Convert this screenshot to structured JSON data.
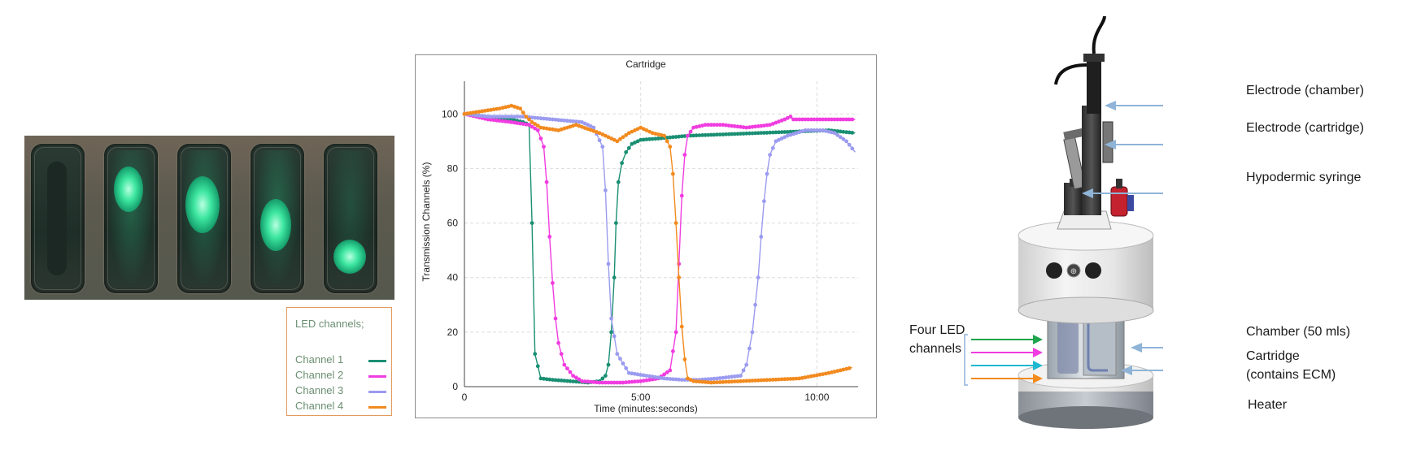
{
  "legend": {
    "title": "LED channels;",
    "channels": [
      {
        "name": "Channel 1",
        "color": "#1a8f73"
      },
      {
        "name": "Channel 2",
        "color": "#f03ce0"
      },
      {
        "name": "Channel 3",
        "color": "#9b9bf0"
      },
      {
        "name": "Channel 4",
        "color": "#f28a1e"
      }
    ]
  },
  "chart_data": {
    "type": "line",
    "title": "Cartridge",
    "xlabel": "Time (minutes:seconds)",
    "ylabel": "Transmission Channels (%)",
    "xlim": [
      0,
      670
    ],
    "ylim": [
      0,
      112
    ],
    "xticks": [
      {
        "value": 0,
        "label": "0"
      },
      {
        "value": 300,
        "label": "5:00"
      },
      {
        "value": 600,
        "label": "10:00"
      }
    ],
    "yticks": [
      0,
      20,
      40,
      60,
      80,
      100
    ],
    "grid": true,
    "series": [
      {
        "name": "Channel 1",
        "color": "#1a8f73",
        "x": [
          0,
          40,
          80,
          100,
          110,
          115,
          120,
          130,
          150,
          180,
          210,
          230,
          240,
          245,
          250,
          255,
          258,
          262,
          268,
          275,
          285,
          300,
          330,
          380,
          440,
          500,
          560,
          620,
          665
        ],
        "y": [
          100,
          99,
          98,
          97,
          96,
          60,
          12,
          3,
          2.5,
          2,
          1.5,
          2,
          4,
          8,
          20,
          40,
          60,
          75,
          82,
          86,
          89,
          90.5,
          91,
          92,
          92.5,
          93,
          93.5,
          94,
          93
        ]
      },
      {
        "name": "Channel 2",
        "color": "#f03ce0",
        "x": [
          0,
          40,
          80,
          110,
          125,
          135,
          140,
          145,
          150,
          155,
          160,
          170,
          185,
          200,
          230,
          270,
          300,
          330,
          350,
          360,
          365,
          370,
          375,
          380,
          390,
          410,
          440,
          480,
          520,
          545,
          555,
          560,
          580,
          620,
          665
        ],
        "y": [
          100,
          98,
          97,
          96,
          94,
          88,
          75,
          55,
          38,
          25,
          16,
          8,
          4,
          2,
          1.5,
          1.5,
          2,
          3,
          6,
          20,
          45,
          70,
          85,
          92,
          95,
          96,
          96,
          95,
          96,
          98,
          99,
          98,
          98,
          98,
          98
        ]
      },
      {
        "name": "Channel 3",
        "color": "#9b9bf0",
        "x": [
          0,
          40,
          100,
          150,
          200,
          220,
          235,
          240,
          245,
          250,
          260,
          280,
          310,
          340,
          370,
          400,
          430,
          470,
          480,
          490,
          500,
          505,
          510,
          515,
          520,
          530,
          550,
          580,
          610,
          630,
          650,
          665
        ],
        "y": [
          100,
          99,
          99,
          98,
          97,
          95,
          88,
          72,
          45,
          25,
          12,
          5,
          4,
          3,
          2.5,
          2.5,
          3,
          4,
          8,
          20,
          40,
          55,
          68,
          78,
          85,
          90,
          92,
          94,
          94,
          93,
          90,
          86
        ]
      },
      {
        "name": "Channel 4",
        "color": "#f28a1e",
        "x": [
          0,
          30,
          60,
          80,
          95,
          105,
          115,
          130,
          160,
          190,
          230,
          260,
          280,
          300,
          320,
          340,
          350,
          355,
          360,
          365,
          370,
          375,
          380,
          390,
          420,
          470,
          520,
          570,
          620,
          660
        ],
        "y": [
          100,
          101,
          102,
          103,
          102,
          99,
          97,
          95,
          94,
          96,
          93,
          90,
          93,
          95,
          93,
          92,
          88,
          78,
          60,
          40,
          22,
          10,
          3,
          2,
          1.5,
          2,
          2.5,
          3,
          5,
          7
        ]
      }
    ]
  },
  "device": {
    "labels": {
      "electrode_chamber": "Electrode (chamber)",
      "electrode_cartridge": "Electrode (cartridge)",
      "hypodermic_syringe": "Hypodermic syringe",
      "four_led_line1": "Four LED",
      "four_led_line2": "channels",
      "chamber": "Chamber (50 mls)",
      "cartridge_line1": "Cartridge",
      "cartridge_line2": "(contains ECM)",
      "heater": "Heater"
    }
  }
}
